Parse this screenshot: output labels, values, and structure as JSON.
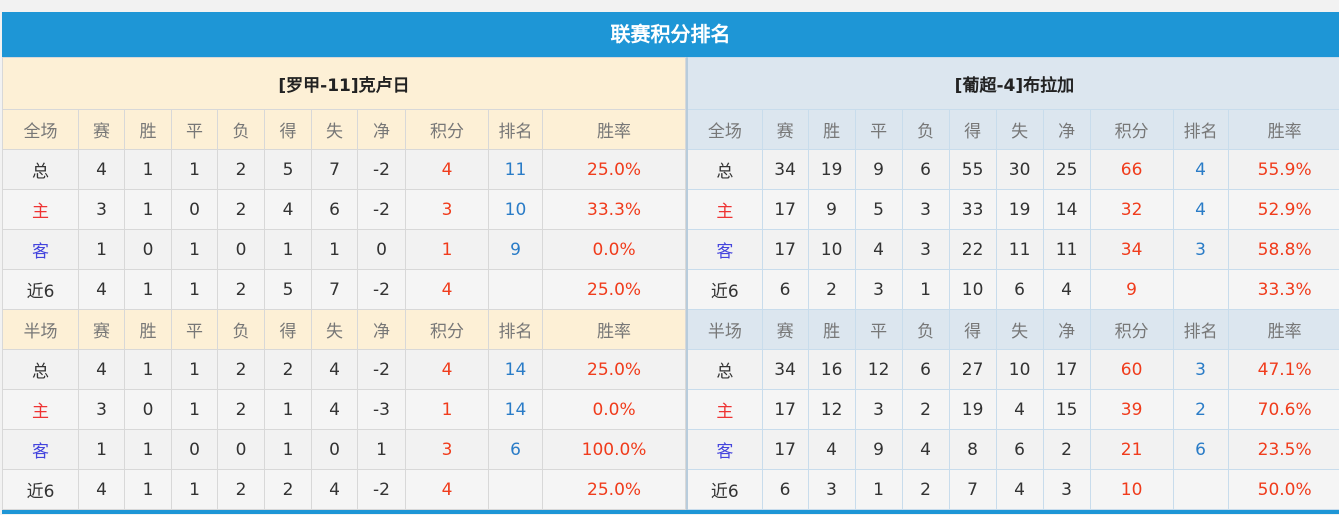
{
  "title": "联赛积分排名",
  "columns": [
    "赛",
    "胜",
    "平",
    "负",
    "得",
    "失",
    "净",
    "积分",
    "排名",
    "胜率"
  ],
  "teams": [
    {
      "name": "[罗甲-11]克卢日",
      "full": {
        "label": "全场",
        "rows": [
          {
            "type": "总",
            "v": [
              "4",
              "1",
              "1",
              "2",
              "5",
              "7",
              "-2",
              "4",
              "11",
              "25.0%"
            ]
          },
          {
            "type": "主",
            "v": [
              "3",
              "1",
              "0",
              "2",
              "4",
              "6",
              "-2",
              "3",
              "10",
              "33.3%"
            ]
          },
          {
            "type": "客",
            "v": [
              "1",
              "0",
              "1",
              "0",
              "1",
              "1",
              "0",
              "1",
              "9",
              "0.0%"
            ]
          },
          {
            "type": "近6",
            "v": [
              "4",
              "1",
              "1",
              "2",
              "5",
              "7",
              "-2",
              "4",
              "",
              "25.0%"
            ]
          }
        ]
      },
      "half": {
        "label": "半场",
        "rows": [
          {
            "type": "总",
            "v": [
              "4",
              "1",
              "1",
              "2",
              "2",
              "4",
              "-2",
              "4",
              "14",
              "25.0%"
            ]
          },
          {
            "type": "主",
            "v": [
              "3",
              "0",
              "1",
              "2",
              "1",
              "4",
              "-3",
              "1",
              "14",
              "0.0%"
            ]
          },
          {
            "type": "客",
            "v": [
              "1",
              "1",
              "0",
              "0",
              "1",
              "0",
              "1",
              "3",
              "6",
              "100.0%"
            ]
          },
          {
            "type": "近6",
            "v": [
              "4",
              "1",
              "1",
              "2",
              "2",
              "4",
              "-2",
              "4",
              "",
              "25.0%"
            ]
          }
        ]
      }
    },
    {
      "name": "[葡超-4]布拉加",
      "full": {
        "label": "全场",
        "rows": [
          {
            "type": "总",
            "v": [
              "34",
              "19",
              "9",
              "6",
              "55",
              "30",
              "25",
              "66",
              "4",
              "55.9%"
            ]
          },
          {
            "type": "主",
            "v": [
              "17",
              "9",
              "5",
              "3",
              "33",
              "19",
              "14",
              "32",
              "4",
              "52.9%"
            ]
          },
          {
            "type": "客",
            "v": [
              "17",
              "10",
              "4",
              "3",
              "22",
              "11",
              "11",
              "34",
              "3",
              "58.8%"
            ]
          },
          {
            "type": "近6",
            "v": [
              "6",
              "2",
              "3",
              "1",
              "10",
              "6",
              "4",
              "9",
              "",
              "33.3%"
            ]
          }
        ]
      },
      "half": {
        "label": "半场",
        "rows": [
          {
            "type": "总",
            "v": [
              "34",
              "16",
              "12",
              "6",
              "27",
              "10",
              "17",
              "60",
              "3",
              "47.1%"
            ]
          },
          {
            "type": "主",
            "v": [
              "17",
              "12",
              "3",
              "2",
              "19",
              "4",
              "15",
              "39",
              "2",
              "70.6%"
            ]
          },
          {
            "type": "客",
            "v": [
              "17",
              "4",
              "9",
              "4",
              "8",
              "6",
              "2",
              "21",
              "6",
              "23.5%"
            ]
          },
          {
            "type": "近6",
            "v": [
              "6",
              "3",
              "1",
              "2",
              "7",
              "4",
              "3",
              "10",
              "",
              "50.0%"
            ]
          }
        ]
      }
    }
  ]
}
